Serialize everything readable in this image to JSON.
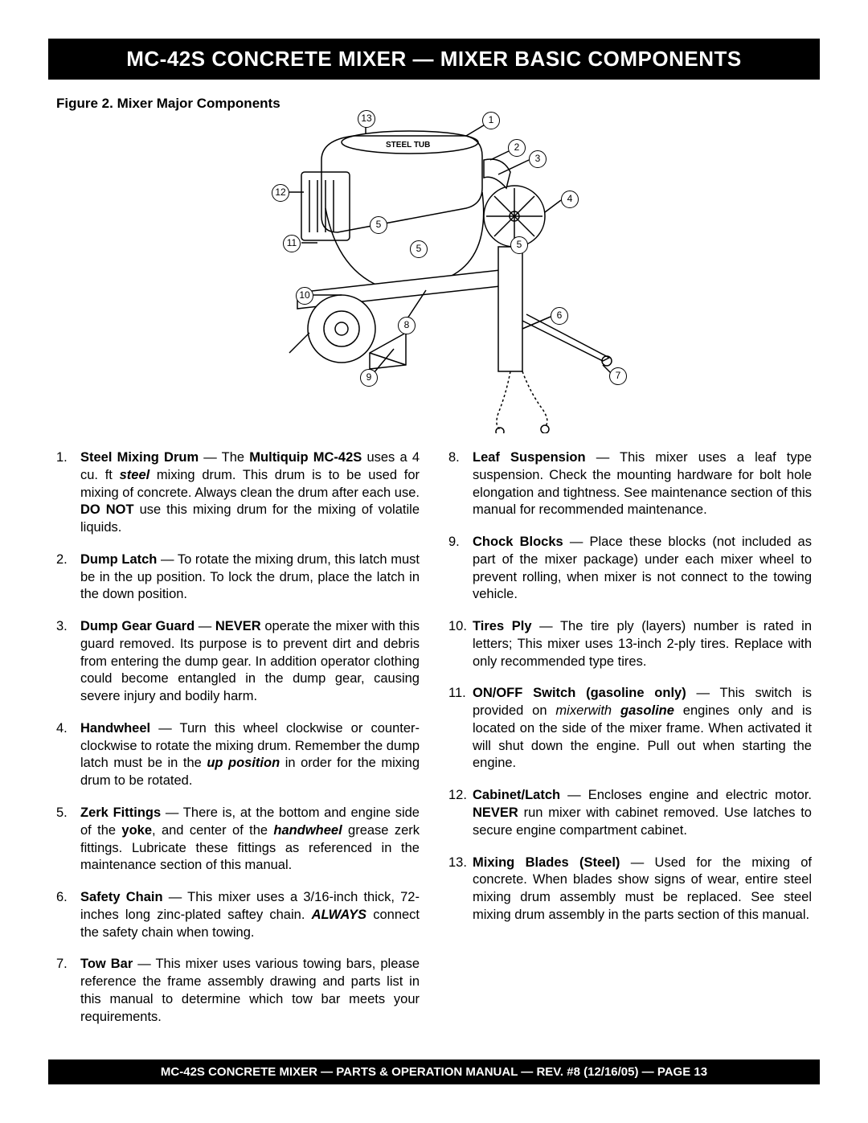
{
  "title_bar": "MC-42S  CONCRETE MIXER — MIXER BASIC COMPONENTS",
  "figure_caption": "Figure 2.  Mixer Major Components",
  "diagram": {
    "steel_tub_label": "STEEL TUB",
    "callouts": [
      "1",
      "2",
      "3",
      "4",
      "5",
      "6",
      "7",
      "8",
      "9",
      "10",
      "11",
      "12",
      "13"
    ]
  },
  "items_left": [
    {
      "n": "1.",
      "title": "Steel Mixing Drum",
      "body": " — The <b>Multiquip MC-42S</b>  uses a 4 cu. ft <b><i>steel</i></b> mixing drum. This drum is to be used for mixing of  concrete. Always clean the drum after each use. <b>DO NOT</b> use this mixing drum for the mixing of volatile liquids."
    },
    {
      "n": "2.",
      "title": "Dump Latch",
      "body": " — To rotate the mixing drum, this latch must be in the up position. To lock the drum, place the latch in the down position."
    },
    {
      "n": "3.",
      "title": "Dump Gear Guard",
      "body": " — <b>NEVER</b> operate the mixer with this guard removed. Its purpose is to prevent dirt and debris from entering the dump gear. In addition operator clothing could become entangled in the dump gear, causing severe injury and bodily harm."
    },
    {
      "n": "4.",
      "title": "Handwheel",
      "body": " — Turn this wheel clockwise or counter-clockwise to rotate the mixing drum. Remember the dump latch must be in the <b><i>up position</i></b> in order for the mixing drum to be rotated."
    },
    {
      "n": "5.",
      "title": "Zerk Fittings",
      "body": " — There is,  at the bottom and engine side of the <b>yoke</b>, and center of the <b><i>handwheel</i></b> grease zerk fittings. Lubricate these fittings as referenced in the maintenance section of this manual."
    },
    {
      "n": "6.",
      "title": "Safety Chain",
      "body": " — This mixer uses a 3/16-inch thick, 72-inches long zinc-plated saftey chain. <b><i>ALWAYS</i></b> connect the safety chain when towing."
    },
    {
      "n": "7.",
      "title": "Tow Bar",
      "body": " — This mixer uses various towing bars, please reference the frame assembly drawing and parts list in this manual to determine which tow bar meets your requirements."
    }
  ],
  "items_right": [
    {
      "n": "8.",
      "title": "Leaf Suspension",
      "body": " — This mixer uses a leaf type suspension. Check the mounting hardware for bolt hole elongation and tightness. See maintenance section of this manual for recommended maintenance."
    },
    {
      "n": "9.",
      "title": "Chock Blocks",
      "body": " — Place these blocks (not included as part of the mixer package) under each mixer wheel to prevent rolling, when mixer is not connect to the towing vehicle."
    },
    {
      "n": "10.",
      "title": "Tires Ply",
      "body": " — The tire ply (layers) number is rated in letters; This mixer uses 13-inch 2-ply tires. Replace with only recommended type tires."
    },
    {
      "n": "11.",
      "title": "ON/OFF Switch (gasoline only)",
      "body": " — This switch is provided on <i>mixerwith <b>gasoline</b></i> engines only and is located on the side of the mixer frame.  When activated it will shut down the engine. Pull out when starting the engine."
    },
    {
      "n": "12.",
      "title": "Cabinet/Latch",
      "body": " — Encloses engine and electric motor. <b>NEVER</b> run mixer with cabinet removed. Use latches to secure engine compartment  cabinet."
    },
    {
      "n": "13.",
      "title": "Mixing Blades (Steel)",
      "body": " — Used  for the mixing of concrete. When blades  show signs of wear, entire steel mixing drum assembly must be replaced. See steel mixing drum assembly in the parts section of this manual."
    }
  ],
  "footer": "MC-42S   CONCRETE MIXER — PARTS & OPERATION MANUAL — REV. #8  (12/16/05) — PAGE 13"
}
